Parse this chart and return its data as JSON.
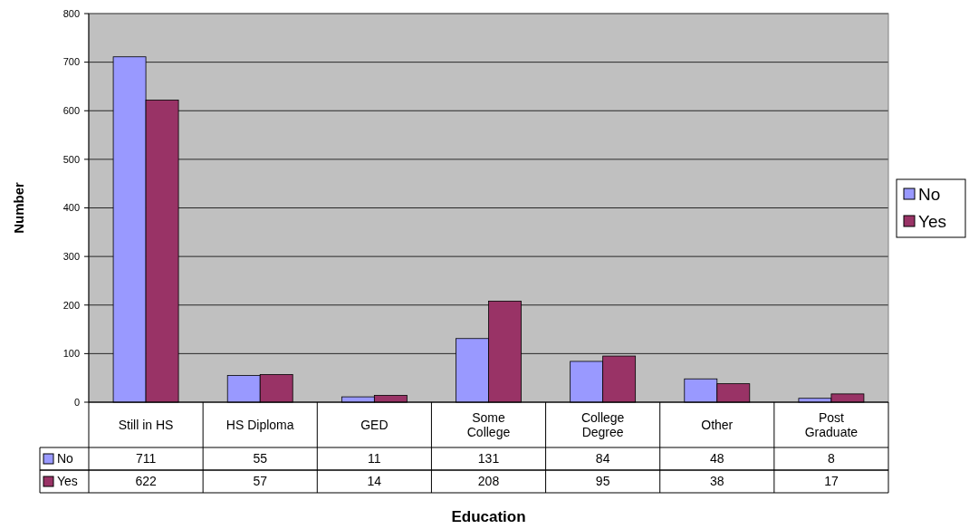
{
  "chart_data": {
    "type": "bar",
    "xlabel": "Education",
    "ylabel": "Number",
    "categories": [
      "Still in HS",
      "HS Diploma",
      "GED",
      "Some College",
      "College Degree",
      "Other",
      "Post Graduate"
    ],
    "series": [
      {
        "name": "No",
        "color": "#9999ff",
        "values": [
          711,
          55,
          11,
          131,
          84,
          48,
          8
        ]
      },
      {
        "name": "Yes",
        "color": "#993366",
        "values": [
          622,
          57,
          14,
          208,
          95,
          38,
          17
        ]
      }
    ],
    "ylim": [
      0,
      800
    ],
    "yticks": [
      0,
      100,
      200,
      300,
      400,
      500,
      600,
      700,
      800
    ],
    "grid": "y",
    "legend": "right",
    "data_labels": true
  }
}
